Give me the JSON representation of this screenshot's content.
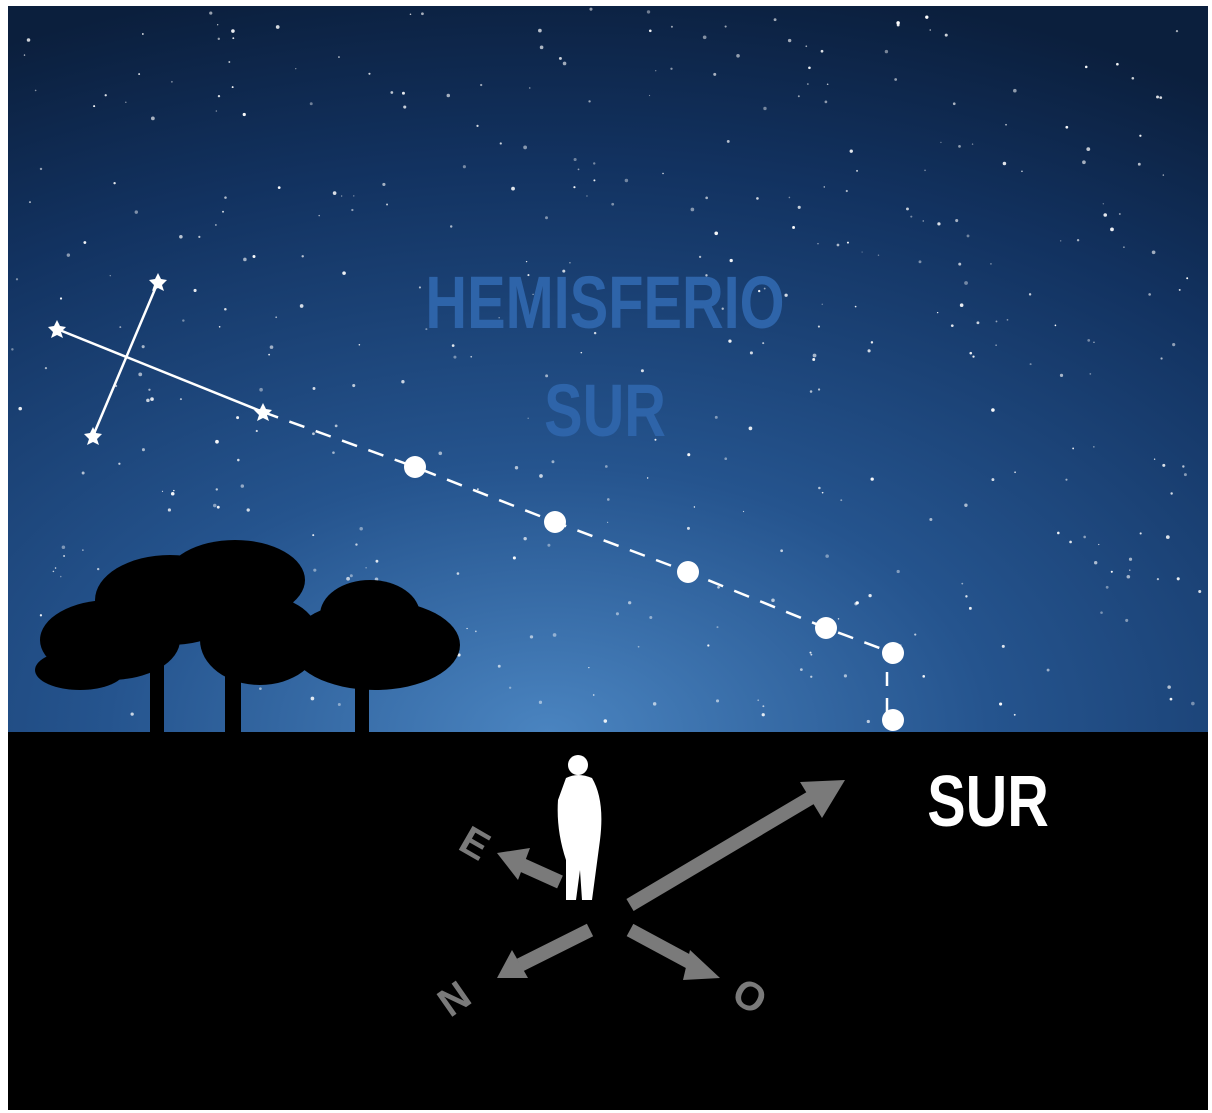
{
  "title": {
    "line1": "HEMISFERIO",
    "line2": "SUR"
  },
  "direction_label": "SUR",
  "compass": {
    "east": "E",
    "north": "N",
    "west": "O"
  }
}
